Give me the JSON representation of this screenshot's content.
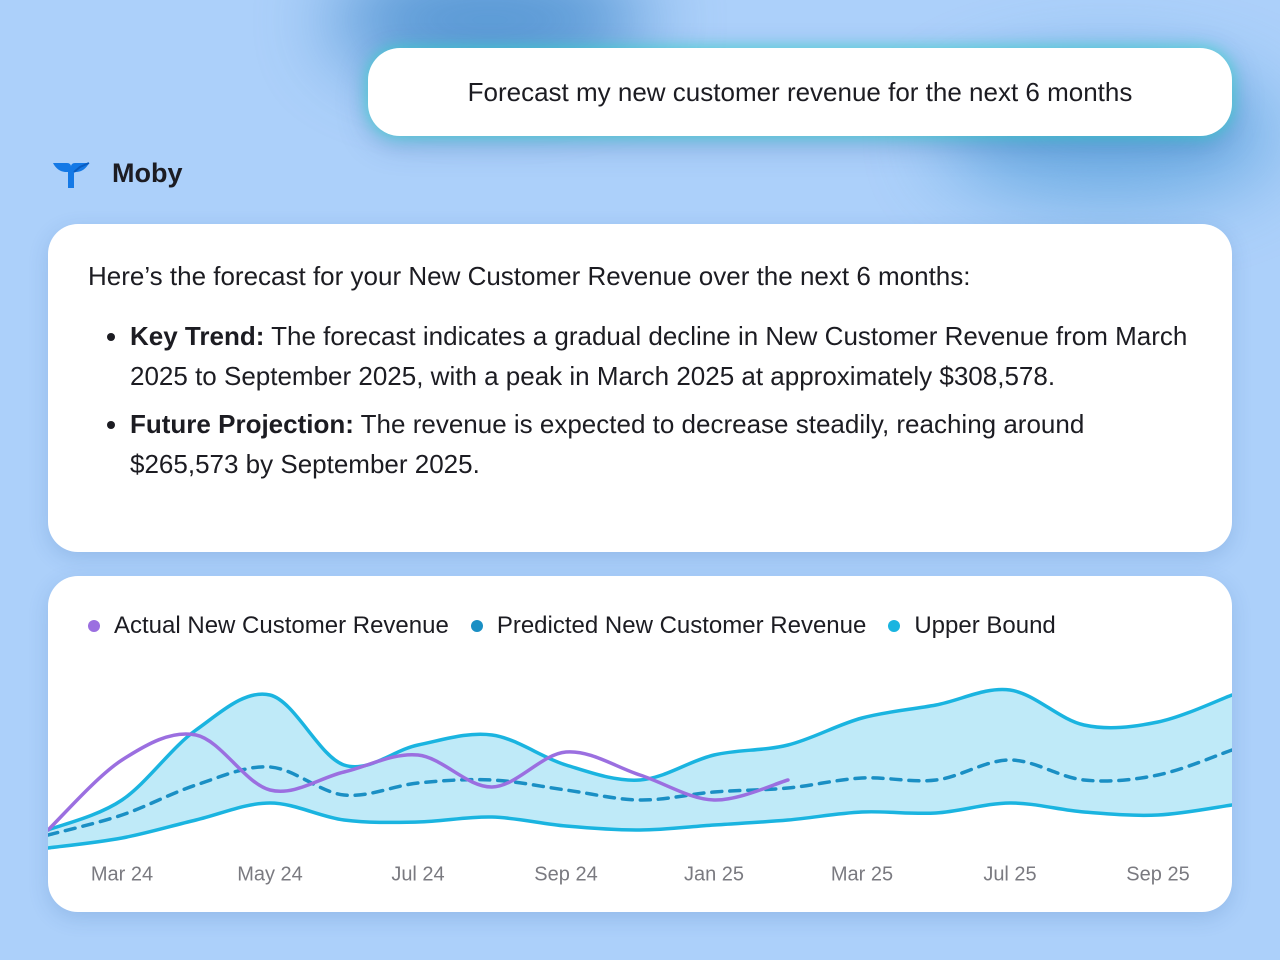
{
  "chat": {
    "user_message": "Forecast my new customer revenue for the next 6 months",
    "assistant_name": "Moby",
    "response": {
      "intro": "Here’s the forecast for your New Customer Revenue over the next 6 months:",
      "bullets": [
        {
          "label": "Key Trend:",
          "text": "The forecast indicates a gradual decline in New Customer Revenue from March 2025 to September 2025, with a peak in March 2025 at approximately $308,578."
        },
        {
          "label": "Future Projection:",
          "text": "The revenue is expected to decrease steadily, reaching around $265,573 by September 2025."
        }
      ]
    }
  },
  "chart_data": {
    "type": "line",
    "categories": [
      null,
      "Mar 24",
      null,
      "May 24",
      null,
      "Jul 24",
      null,
      "Sep 24",
      null,
      "Jan 25",
      null,
      "Mar 25",
      null,
      "Jul 25",
      null,
      "Sep 25",
      null
    ],
    "ylim": [
      0,
      110
    ],
    "band_color": "#bfeaf8",
    "series": [
      {
        "name": "Actual New Customer Revenue",
        "color": "#9b6fe0",
        "values": [
          20,
          55,
          67.5,
          40,
          49,
          57.5,
          41.5,
          59,
          47.5,
          35,
          45,
          null,
          null,
          null,
          null,
          null,
          null
        ]
      },
      {
        "name": "Predicted New Customer Revenue",
        "color": "#1a8fc4",
        "dashed": true,
        "values": [
          17.5,
          27.5,
          42.5,
          51.5,
          37.5,
          43.5,
          45,
          40,
          35,
          39,
          41,
          46,
          45,
          55,
          45,
          47.5,
          60
        ]
      },
      {
        "name": "Upper Bound",
        "color": "#1ab4e0",
        "values": [
          20,
          35,
          70,
          87.5,
          52.5,
          62.5,
          67.5,
          52.5,
          45,
          57.5,
          62.5,
          76,
          82.5,
          90,
          72.5,
          74,
          87.5
        ]
      },
      {
        "color": "#1ab4e0",
        "values": [
          11,
          16,
          25,
          33.5,
          25,
          24,
          26.5,
          22,
          20,
          22.5,
          25,
          29,
          28.5,
          33.5,
          29,
          27.5,
          32.5
        ]
      }
    ]
  }
}
